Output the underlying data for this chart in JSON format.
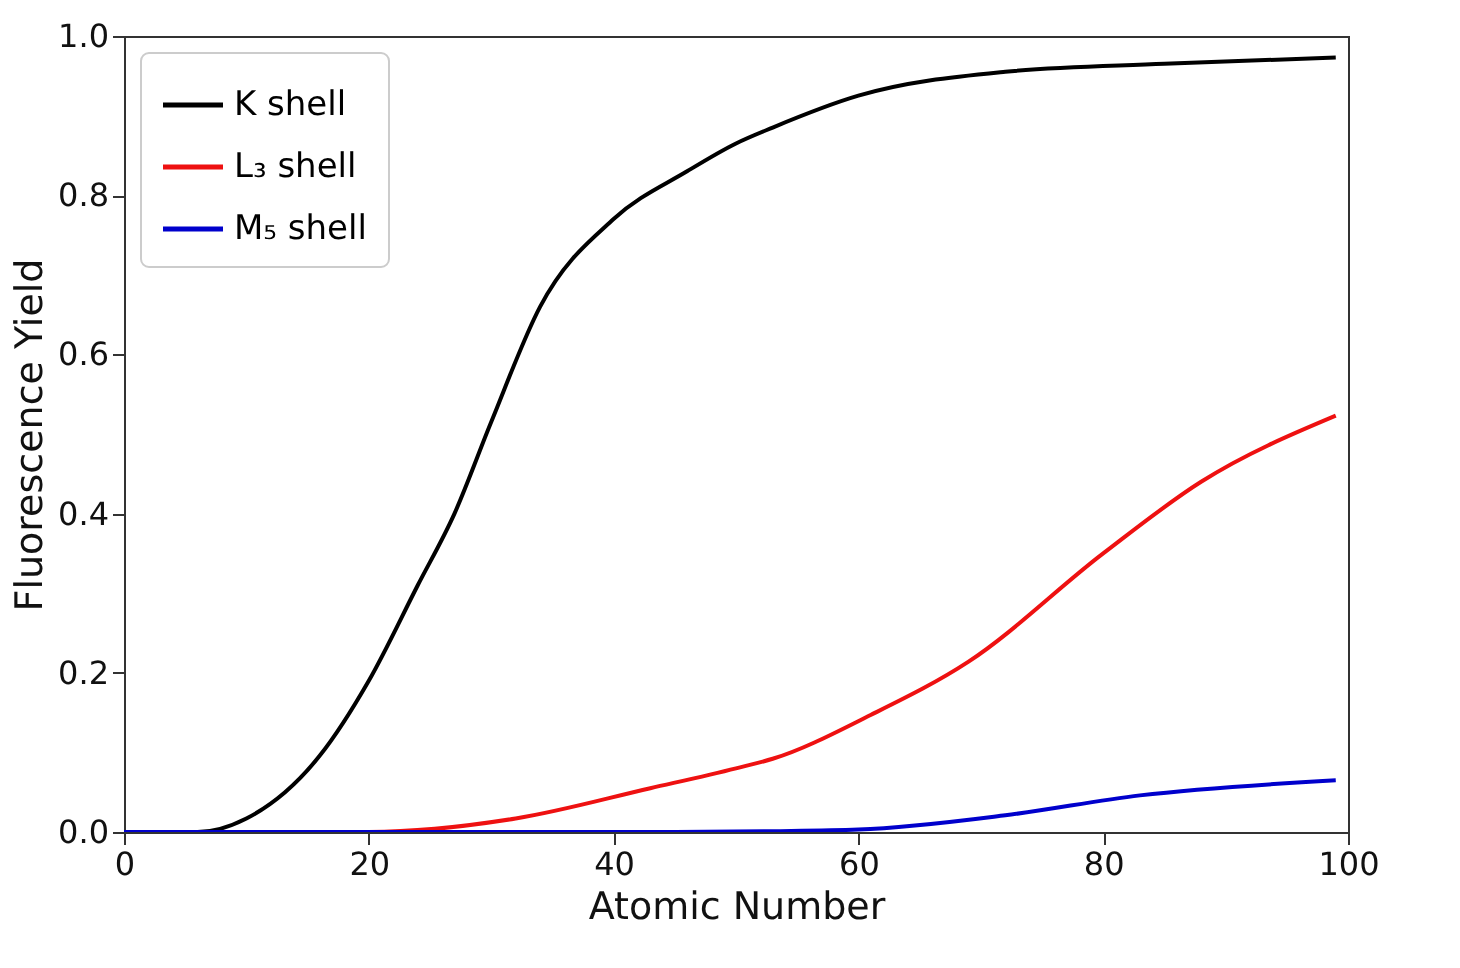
{
  "chart_data": {
    "type": "line",
    "xlabel": "Atomic Number",
    "ylabel": "Fluorescence Yield",
    "xlim": [
      0,
      100
    ],
    "ylim": [
      0,
      1.0
    ],
    "xticks": [
      0,
      20,
      40,
      60,
      80,
      100
    ],
    "yticks": [
      {
        "value": 0,
        "label": "0.0"
      },
      {
        "value": 0.2,
        "label": "0.2"
      },
      {
        "value": 0.4,
        "label": "0.4"
      },
      {
        "value": 0.6,
        "label": "0.6"
      },
      {
        "value": 0.8,
        "label": "0.8"
      },
      {
        "value": 1.0,
        "label": "1.0"
      }
    ],
    "grid": false,
    "legend": "top left",
    "marker": "none",
    "line_style": "solid",
    "series": [
      {
        "name": "K shell",
        "color": "#000000",
        "x": [
          0,
          3,
          6,
          10,
          16,
          20,
          24,
          27,
          30,
          34,
          40,
          46,
          50,
          53,
          60,
          72,
          85,
          99
        ],
        "values": [
          0,
          0,
          0,
          0.017,
          0.096,
          0.19,
          0.31,
          0.4,
          0.515,
          0.66,
          0.77,
          0.83,
          0.865,
          0.885,
          0.925,
          0.955,
          0.965,
          0.973
        ]
      },
      {
        "name": "L₃ shell",
        "color": "#ee1111",
        "x": [
          0,
          10,
          20,
          32,
          43,
          50,
          53,
          61,
          69,
          80,
          88,
          99
        ],
        "values": [
          0,
          0,
          0,
          0.017,
          0.055,
          0.08,
          0.092,
          0.147,
          0.214,
          0.35,
          0.44,
          0.523
        ]
      },
      {
        "name": "M₅ shell",
        "color": "#0000cc",
        "x": [
          0,
          20,
          45,
          53,
          60,
          72,
          83,
          99
        ],
        "values": [
          0,
          0,
          0,
          0.001,
          0.003,
          0.021,
          0.046,
          0.065
        ]
      }
    ]
  }
}
